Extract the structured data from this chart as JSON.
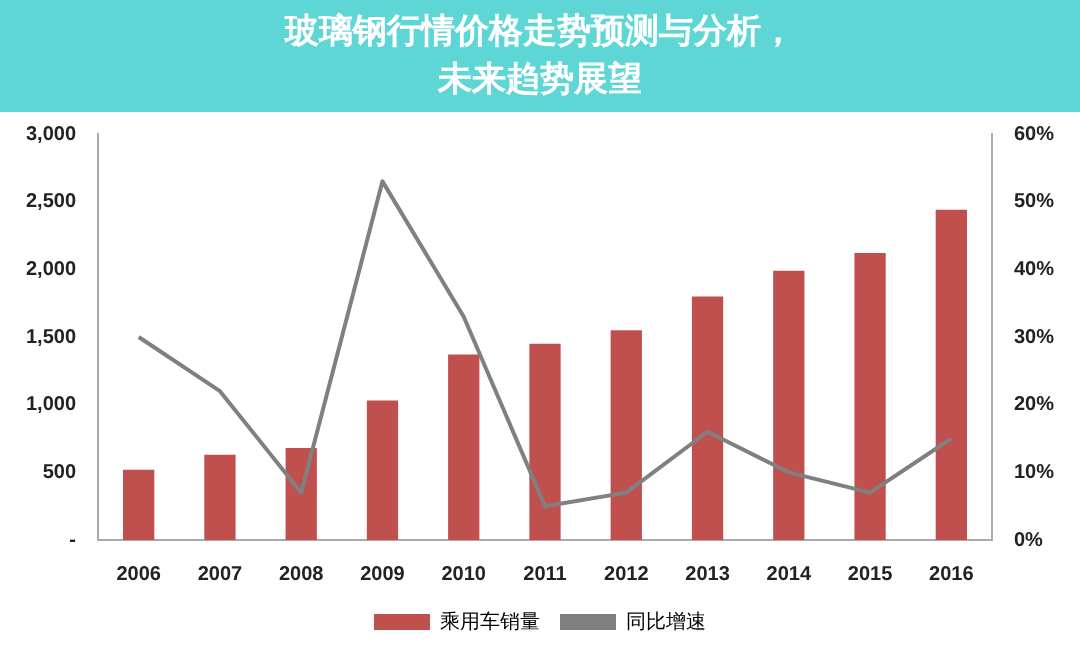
{
  "chart_data": {
    "type": "bar",
    "title": "玻璃钢行情价格走势预测与分析，未来趋势展望",
    "categories": [
      "2006",
      "2007",
      "2008",
      "2009",
      "2010",
      "2011",
      "2012",
      "2013",
      "2014",
      "2015",
      "2016"
    ],
    "series": [
      {
        "name": "乘用车销量",
        "color": "#c0504d",
        "values": [
          520,
          630,
          680,
          1030,
          1370,
          1450,
          1550,
          1800,
          1990,
          2120,
          2440
        ]
      },
      {
        "name": "同比增速",
        "type": "line",
        "axis": "y2",
        "color": "#808080",
        "values": [
          30,
          22,
          7,
          53,
          33,
          5,
          7,
          16,
          10,
          7,
          15
        ]
      }
    ],
    "ylim": [
      0,
      3000
    ],
    "yticks": [
      {
        "value": 0,
        "label": "-"
      },
      {
        "value": 500,
        "label": "500"
      },
      {
        "value": 1000,
        "label": "1,000"
      },
      {
        "value": 1500,
        "label": "1,500"
      },
      {
        "value": 2000,
        "label": "2,000"
      },
      {
        "value": 2500,
        "label": "2,500"
      },
      {
        "value": 3000,
        "label": "3,000"
      }
    ],
    "y2lim": [
      0,
      60
    ],
    "y2ticks": [
      {
        "value": 0,
        "label": "0%"
      },
      {
        "value": 10,
        "label": "10%"
      },
      {
        "value": 20,
        "label": "20%"
      },
      {
        "value": 30,
        "label": "30%"
      },
      {
        "value": 40,
        "label": "40%"
      },
      {
        "value": 50,
        "label": "50%"
      },
      {
        "value": 60,
        "label": "60%"
      }
    ],
    "grid": false,
    "legend": "bottom",
    "marker": "none"
  }
}
